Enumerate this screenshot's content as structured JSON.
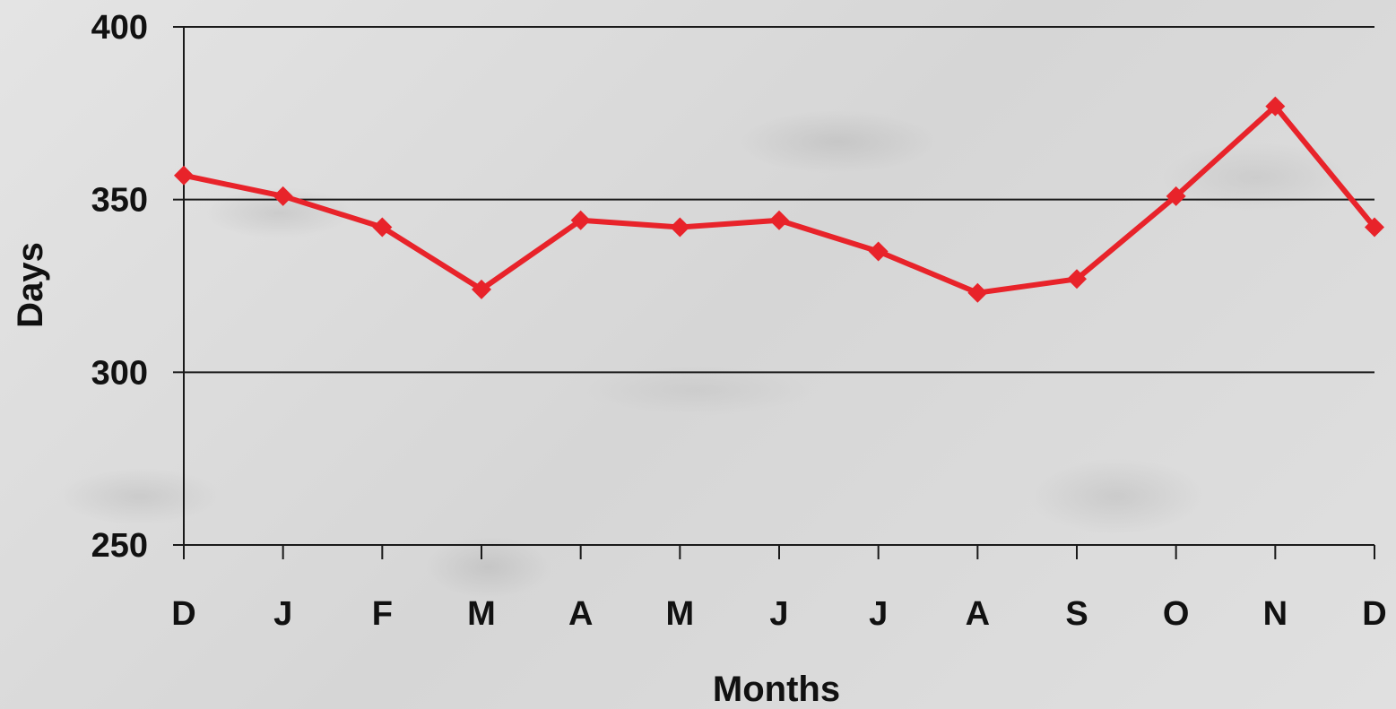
{
  "chart_data": {
    "type": "line",
    "title": "",
    "xlabel": "Months",
    "ylabel": "Days",
    "categories": [
      "D",
      "J",
      "F",
      "M",
      "A",
      "M",
      "J",
      "J",
      "A",
      "S",
      "O",
      "N",
      "D"
    ],
    "series": [
      {
        "values": [
          357,
          351,
          342,
          324,
          344,
          342,
          344,
          335,
          323,
          327,
          351,
          377,
          342
        ],
        "color": "#e8232a",
        "marker": "diamond"
      }
    ],
    "ylim": [
      250,
      400
    ],
    "yticks": [
      250,
      300,
      350,
      400
    ],
    "grid": true
  }
}
